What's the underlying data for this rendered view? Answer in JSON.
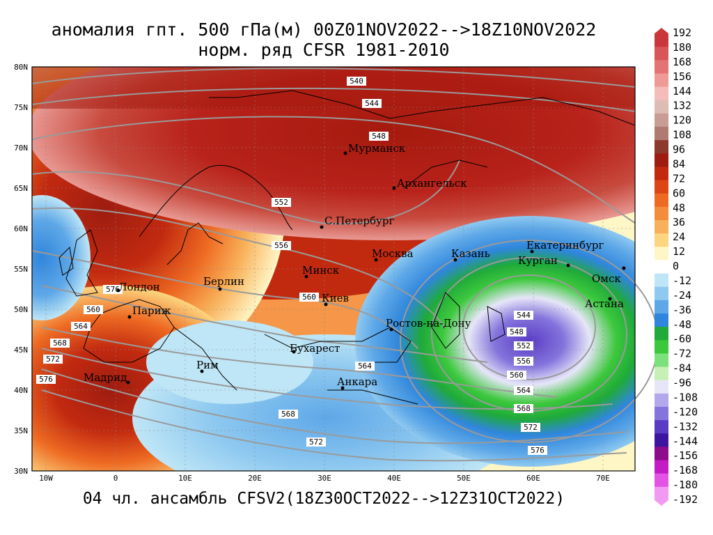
{
  "title_line1": "аномалия гпт. 500 гПа(м) 00Z01NOV2022-->18Z10NOV2022",
  "title_line2": "норм. ряд CFSR 1981-2010",
  "footer": "04 чл. ансамбль CFSV2(18Z30OCT2022-->12Z31OCT2022)",
  "lat_labels": [
    "80N",
    "75N",
    "70N",
    "65N",
    "60N",
    "55N",
    "50N",
    "45N",
    "40N",
    "35N",
    "30N"
  ],
  "lon_labels": [
    "10W",
    "0",
    "10E",
    "20E",
    "30E",
    "40E",
    "50E",
    "60E",
    "70E"
  ],
  "colorbar": {
    "labels": [
      "192",
      "180",
      "168",
      "156",
      "144",
      "132",
      "120",
      "108",
      "96",
      "84",
      "72",
      "60",
      "48",
      "36",
      "24",
      "12",
      "0",
      "-12",
      "-24",
      "-36",
      "-48",
      "-60",
      "-72",
      "-84",
      "-96",
      "-108",
      "-120",
      "-132",
      "-144",
      "-156",
      "-168",
      "-180",
      "-192"
    ],
    "colors": [
      "#c9373a",
      "#d85558",
      "#e47373",
      "#ee9a97",
      "#f5bdba",
      "#ddbcb3",
      "#c89e94",
      "#b07a70",
      "#8c3a2c",
      "#9e1c10",
      "#c22a10",
      "#dc4514",
      "#ee6a22",
      "#f48c3a",
      "#f8b15a",
      "#fcd580",
      "#fff6c6",
      "#ffffff",
      "#bfe6f6",
      "#8fc9f0",
      "#5ea8e8",
      "#2f86dc",
      "#1faa3a",
      "#3cc83c",
      "#7ce07c",
      "#c6f0b4",
      "#e6e6f8",
      "#b4a8ec",
      "#8474dc",
      "#5a3cc4",
      "#3c14a0",
      "#8c0c8c",
      "#c41cc4",
      "#e454e4",
      "#f29af2"
    ]
  },
  "cities": [
    {
      "name": "Мурманск"
    },
    {
      "name": "Архангельск"
    },
    {
      "name": "С.Петербург"
    },
    {
      "name": "Москва"
    },
    {
      "name": "Казань"
    },
    {
      "name": "Екатеринбург"
    },
    {
      "name": "Курган"
    },
    {
      "name": "Омск"
    },
    {
      "name": "Астана"
    },
    {
      "name": "Минск"
    },
    {
      "name": "Киев"
    },
    {
      "name": "Берлин"
    },
    {
      "name": "Лондон"
    },
    {
      "name": "Париж"
    },
    {
      "name": "Мадрид"
    },
    {
      "name": "Рим"
    },
    {
      "name": "Бухарест"
    },
    {
      "name": "Анкара"
    },
    {
      "name": "Ростов-на-Дону"
    }
  ],
  "contour_labels": [
    "540",
    "544",
    "548",
    "552",
    "556",
    "560",
    "564",
    "568",
    "572",
    "576",
    "544",
    "548",
    "552",
    "556",
    "560",
    "564",
    "568",
    "572",
    "576",
    "560",
    "564",
    "568",
    "572",
    "576"
  ]
}
